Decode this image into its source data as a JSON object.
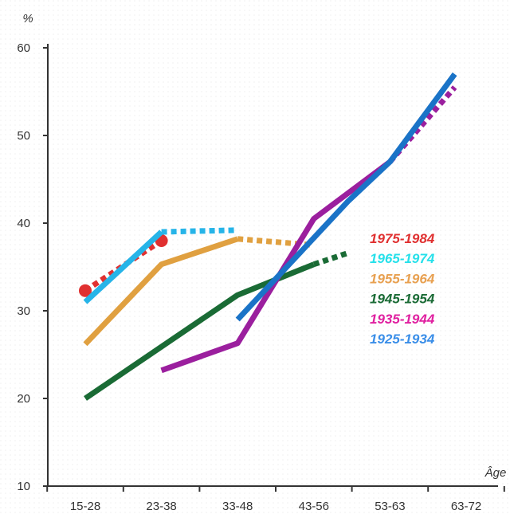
{
  "chart_data": {
    "type": "line",
    "y_unit": "%",
    "x_unit": "Âge",
    "categories": [
      "15-28",
      "23-38",
      "33-48",
      "43-56",
      "53-63",
      "63-72"
    ],
    "ylim": [
      10,
      60
    ],
    "yticks": [
      10,
      20,
      30,
      40,
      50,
      60
    ],
    "grid": false,
    "legend_position": "right",
    "series": [
      {
        "name": "1975-1984",
        "color": "#e03030",
        "solid": [],
        "dotted": [
          [
            0,
            32.3
          ],
          [
            1,
            38
          ]
        ],
        "markers": [
          [
            0,
            32.3
          ],
          [
            1,
            38
          ]
        ]
      },
      {
        "name": "1965-1974",
        "color": "#26b4e8",
        "solid": [
          [
            0,
            31
          ],
          [
            1,
            39
          ]
        ],
        "dotted": [
          [
            1,
            39
          ],
          [
            2,
            39.2
          ]
        ],
        "markers": []
      },
      {
        "name": "1955-1964",
        "color": "#e0a040",
        "solid": [
          [
            0,
            26.2
          ],
          [
            1,
            35.3
          ],
          [
            2,
            38.2
          ]
        ],
        "dotted": [
          [
            2,
            38.2
          ],
          [
            3,
            37.5
          ]
        ],
        "markers": []
      },
      {
        "name": "1945-1954",
        "color": "#1a6b35",
        "solid": [
          [
            0,
            20
          ],
          [
            2,
            31.8
          ],
          [
            3,
            35.3
          ]
        ],
        "dotted": [
          [
            3,
            35.3
          ],
          [
            3.45,
            36.6
          ]
        ],
        "markers": []
      },
      {
        "name": "1935-1944",
        "color": "#9b1f9e",
        "solid": [
          [
            1,
            23.2
          ],
          [
            2,
            26.3
          ],
          [
            3,
            40.5
          ],
          [
            4,
            47
          ]
        ],
        "dotted": [
          [
            4,
            47
          ],
          [
            4.85,
            55.5
          ]
        ],
        "markers": []
      },
      {
        "name": "1925-1934",
        "color": "#1a73c7",
        "solid": [
          [
            2,
            29
          ],
          [
            3.45,
            42.5
          ],
          [
            4,
            47
          ],
          [
            4.85,
            57
          ]
        ],
        "dotted": [],
        "markers": []
      }
    ],
    "legend_colors": [
      "#e03030",
      "#26e0ea",
      "#e8a050",
      "#1a6b35",
      "#e020a0",
      "#3a8ee8"
    ]
  }
}
